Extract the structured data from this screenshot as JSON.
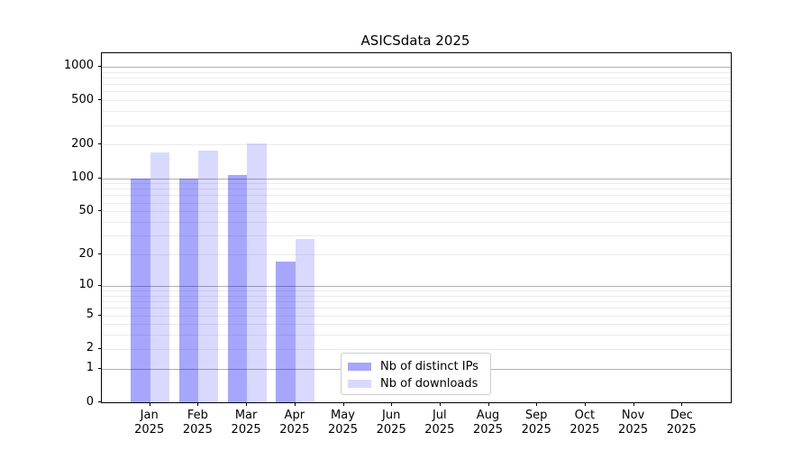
{
  "title": "ASICSdata 2025",
  "year": "2025",
  "chart_data": {
    "type": "bar",
    "title": "ASICSdata 2025",
    "categories": [
      "Jan",
      "Feb",
      "Mar",
      "Apr",
      "May",
      "Jun",
      "Jul",
      "Aug",
      "Sep",
      "Oct",
      "Nov",
      "Dec"
    ],
    "category_year": "2025",
    "series": [
      {
        "name": "Nb of distinct IPs",
        "color": "rgba(0,0,255,0.35)",
        "color_hex": "#a6a6ff",
        "values": [
          100,
          100,
          107,
          17,
          0,
          0,
          0,
          0,
          0,
          0,
          0,
          0
        ]
      },
      {
        "name": "Nb of downloads",
        "color": "rgba(0,0,255,0.15)",
        "color_hex": "#d9d9ff",
        "values": [
          172,
          177,
          205,
          28,
          0,
          0,
          0,
          0,
          0,
          0,
          0,
          0
        ]
      }
    ],
    "xlabel": "",
    "ylabel": "",
    "yscale": "log1p",
    "y_ticks": [
      0,
      1,
      2,
      5,
      10,
      20,
      50,
      100,
      200,
      500,
      1000
    ],
    "y_major_ticks": [
      1,
      10,
      100,
      1000
    ],
    "ylim": [
      0,
      1320
    ],
    "grid": true,
    "legend_position": "lower center",
    "colors": {
      "grid_major": "#b0b0b0",
      "grid_minor": "#ebebeb",
      "axis": "#000000",
      "legend_border": "#cccccc",
      "background": "#ffffff"
    }
  }
}
